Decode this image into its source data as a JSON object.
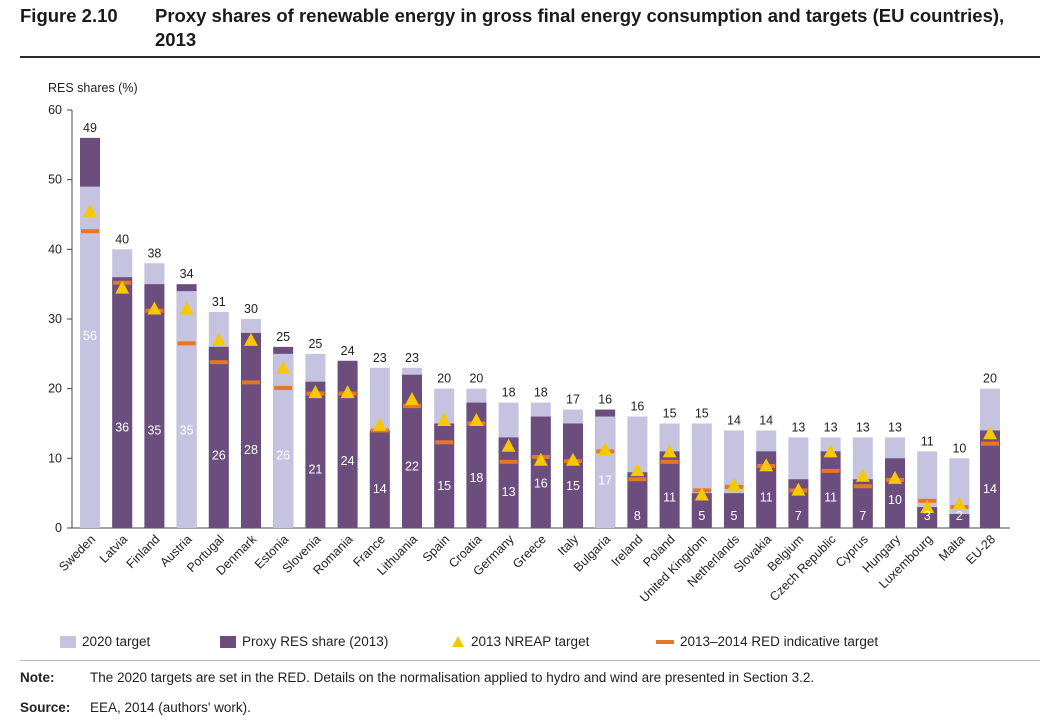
{
  "figure": {
    "number": "Figure 2.10",
    "title": "Proxy shares of renewable energy in gross final energy consumption and targets (EU countries), 2013"
  },
  "note": {
    "label": "Note:",
    "text": "The 2020 targets are set in the RED. Details on the normalisation applied to hydro and wind are presented in Section 3.2."
  },
  "source": {
    "label": "Source:",
    "text": "EEA, 2014 (authors' work)."
  },
  "legend": {
    "target_2020": "2020 target",
    "proxy_share": "Proxy RES share (2013)",
    "nreap": "2013 NREAP target",
    "red": "2013–2014 RED indicative target"
  },
  "colors": {
    "target_2020": "#c5c3e0",
    "proxy_share": "#6b4e7e",
    "nreap": "#f5c800",
    "red": "#e87722"
  },
  "chart_data": {
    "type": "bar",
    "ylabel": "RES shares (%)",
    "ylim": [
      0,
      60
    ],
    "yticks": [
      0,
      10,
      20,
      30,
      40,
      50,
      60
    ],
    "categories": [
      "Sweden",
      "Latvia",
      "Finland",
      "Austria",
      "Portugal",
      "Denmark",
      "Estonia",
      "Slovenia",
      "Romania",
      "France",
      "Lithuania",
      "Spain",
      "Croatia",
      "Germany",
      "Greece",
      "Italy",
      "Bulgaria",
      "Ireland",
      "Poland",
      "United Kingdom",
      "Netherlands",
      "Slovakia",
      "Belgium",
      "Czech Republic",
      "Cyprus",
      "Hungary",
      "Luxembourg",
      "Malta",
      "EU-28"
    ],
    "series": [
      {
        "name": "2020 target",
        "values": [
          49,
          40,
          38,
          34,
          31,
          30,
          25,
          25,
          24,
          23,
          23,
          20,
          20,
          18,
          18,
          17,
          16,
          16,
          15,
          15,
          14,
          14,
          13,
          13,
          13,
          13,
          11,
          10,
          20
        ]
      },
      {
        "name": "Proxy RES share (2013)",
        "values": [
          56,
          36,
          35,
          35,
          26,
          28,
          26,
          21,
          24,
          14,
          22,
          15,
          18,
          13,
          16,
          15,
          17,
          8,
          11,
          5,
          5,
          11,
          7,
          11,
          7,
          10,
          3,
          2,
          14
        ]
      },
      {
        "name": "2013 NREAP target",
        "values": [
          45.5,
          34.5,
          31.5,
          31.5,
          27,
          27,
          23,
          19.5,
          19.5,
          14.8,
          18.5,
          15.5,
          15.5,
          11.8,
          9.8,
          9.8,
          11.3,
          8.3,
          11,
          4.8,
          6.2,
          9,
          5.5,
          11,
          7.5,
          7.2,
          3,
          3.5,
          13.6
        ]
      },
      {
        "name": "2013–2014 RED indicative target",
        "values": [
          42.6,
          35.2,
          31.2,
          26.5,
          23.8,
          20.9,
          20.1,
          19.3,
          19.3,
          14,
          17.5,
          12.3,
          15,
          9.5,
          10.2,
          9.6,
          11,
          7,
          9.5,
          5.4,
          5.9,
          8.9,
          5.4,
          8.2,
          6,
          6.9,
          3.9,
          3,
          12.1
        ]
      }
    ],
    "target_labels": [
      "49",
      "40",
      "38",
      "34",
      "31",
      "30",
      "25",
      "25",
      "24",
      "23",
      "23",
      "20",
      "20",
      "18",
      "18",
      "17",
      "16",
      "16",
      "15",
      "15",
      "14",
      "14",
      "13",
      "13",
      "13",
      "13",
      "11",
      "10",
      "20"
    ],
    "share_labels": [
      "56",
      "36",
      "35",
      "35",
      "26",
      "28",
      "26",
      "21",
      "24",
      "14",
      "22",
      "15",
      "18",
      "13",
      "16",
      "15",
      "17",
      "8",
      "11",
      "5",
      "5",
      "11",
      "7",
      "11",
      "7",
      "10",
      "3",
      "2",
      "14"
    ]
  }
}
